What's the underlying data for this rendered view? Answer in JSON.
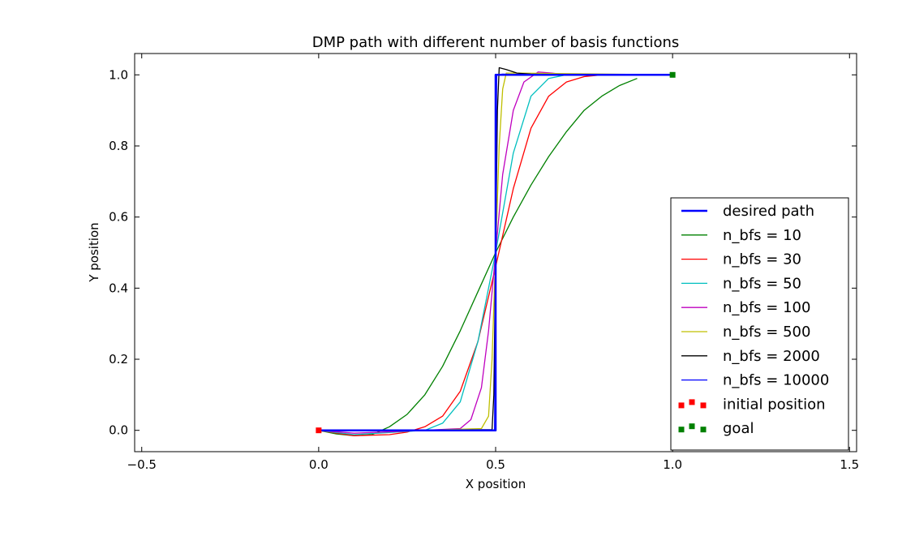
{
  "chart_data": {
    "type": "line",
    "title": "DMP path with different number of basis functions",
    "xlabel": "X position",
    "ylabel": "Y position",
    "xlim": [
      -0.52,
      1.52
    ],
    "ylim": [
      -0.06,
      1.06
    ],
    "xticks": [
      -0.5,
      0.0,
      0.5,
      1.0,
      1.5
    ],
    "xtick_labels": [
      "−0.5",
      "0.0",
      "0.5",
      "1.0",
      "1.5"
    ],
    "yticks": [
      0.0,
      0.2,
      0.4,
      0.6,
      0.8,
      1.0
    ],
    "ytick_labels": [
      "0.0",
      "0.2",
      "0.4",
      "0.6",
      "0.8",
      "1.0"
    ],
    "grid": false,
    "legend_position": "lower-right",
    "series": [
      {
        "name": "desired path",
        "color": "#0000ff",
        "width": 2.5,
        "x": [
          0.0,
          0.5,
          0.5,
          1.0
        ],
        "y": [
          0.0,
          0.0,
          1.0,
          1.0
        ]
      },
      {
        "name": "n_bfs = 10",
        "color": "#008000",
        "width": 1.3,
        "x": [
          0.0,
          0.05,
          0.1,
          0.15,
          0.2,
          0.25,
          0.3,
          0.35,
          0.4,
          0.45,
          0.5,
          0.55,
          0.6,
          0.65,
          0.7,
          0.75,
          0.8,
          0.85,
          0.9
        ],
        "y": [
          0.0,
          -0.01,
          -0.015,
          -0.012,
          0.01,
          0.045,
          0.1,
          0.18,
          0.28,
          0.39,
          0.5,
          0.6,
          0.69,
          0.77,
          0.84,
          0.9,
          0.94,
          0.97,
          0.99
        ]
      },
      {
        "name": "n_bfs = 30",
        "color": "#ff0000",
        "width": 1.3,
        "x": [
          0.0,
          0.1,
          0.2,
          0.25,
          0.3,
          0.35,
          0.4,
          0.45,
          0.5,
          0.55,
          0.6,
          0.65,
          0.7,
          0.75,
          0.8,
          1.0
        ],
        "y": [
          0.0,
          -0.015,
          -0.012,
          -0.005,
          0.01,
          0.04,
          0.11,
          0.25,
          0.46,
          0.68,
          0.85,
          0.94,
          0.98,
          0.995,
          1.0,
          1.0
        ]
      },
      {
        "name": "n_bfs = 50",
        "color": "#00bfbf",
        "width": 1.3,
        "x": [
          0.0,
          0.1,
          0.2,
          0.3,
          0.35,
          0.4,
          0.45,
          0.5,
          0.55,
          0.6,
          0.65,
          0.7,
          1.0
        ],
        "y": [
          0.0,
          -0.012,
          -0.006,
          0.0,
          0.02,
          0.08,
          0.25,
          0.5,
          0.78,
          0.94,
          0.99,
          1.0,
          1.0
        ]
      },
      {
        "name": "n_bfs = 100",
        "color": "#bf00bf",
        "width": 1.3,
        "x": [
          0.0,
          0.1,
          0.2,
          0.3,
          0.4,
          0.43,
          0.46,
          0.48,
          0.5,
          0.52,
          0.55,
          0.58,
          0.62,
          0.66,
          0.7,
          1.0
        ],
        "y": [
          0.0,
          -0.008,
          -0.004,
          0.0,
          0.005,
          0.03,
          0.12,
          0.28,
          0.5,
          0.72,
          0.9,
          0.98,
          1.008,
          1.005,
          1.0,
          1.0
        ]
      },
      {
        "name": "n_bfs = 500",
        "color": "#bfbf00",
        "width": 1.3,
        "x": [
          0.0,
          0.3,
          0.46,
          0.48,
          0.49,
          0.5,
          0.51,
          0.52,
          0.53,
          0.56,
          1.0
        ],
        "y": [
          0.0,
          0.0,
          0.005,
          0.04,
          0.2,
          0.5,
          0.8,
          0.96,
          1.005,
          1.005,
          1.0
        ]
      },
      {
        "name": "n_bfs = 2000",
        "color": "#000000",
        "width": 1.3,
        "x": [
          0.0,
          0.3,
          0.49,
          0.495,
          0.5,
          0.505,
          0.51,
          0.53,
          0.56,
          0.6,
          0.7,
          1.0
        ],
        "y": [
          0.0,
          0.0,
          0.002,
          0.1,
          0.5,
          0.9,
          1.02,
          1.015,
          1.005,
          1.002,
          1.0,
          1.0
        ]
      },
      {
        "name": "n_bfs = 10000",
        "color": "#0000ff",
        "width": 1.3,
        "x": [
          0.0,
          0.3,
          0.497,
          0.5,
          0.503,
          0.52,
          0.6,
          1.0
        ],
        "y": [
          0.0,
          0.0,
          0.0,
          0.5,
          1.0,
          1.002,
          1.0,
          1.0
        ]
      }
    ],
    "markers": [
      {
        "name": "initial position",
        "color": "#ff0000",
        "x": 0.0,
        "y": 0.0
      },
      {
        "name": "goal",
        "color": "#008000",
        "x": 1.0,
        "y": 1.0
      }
    ]
  }
}
